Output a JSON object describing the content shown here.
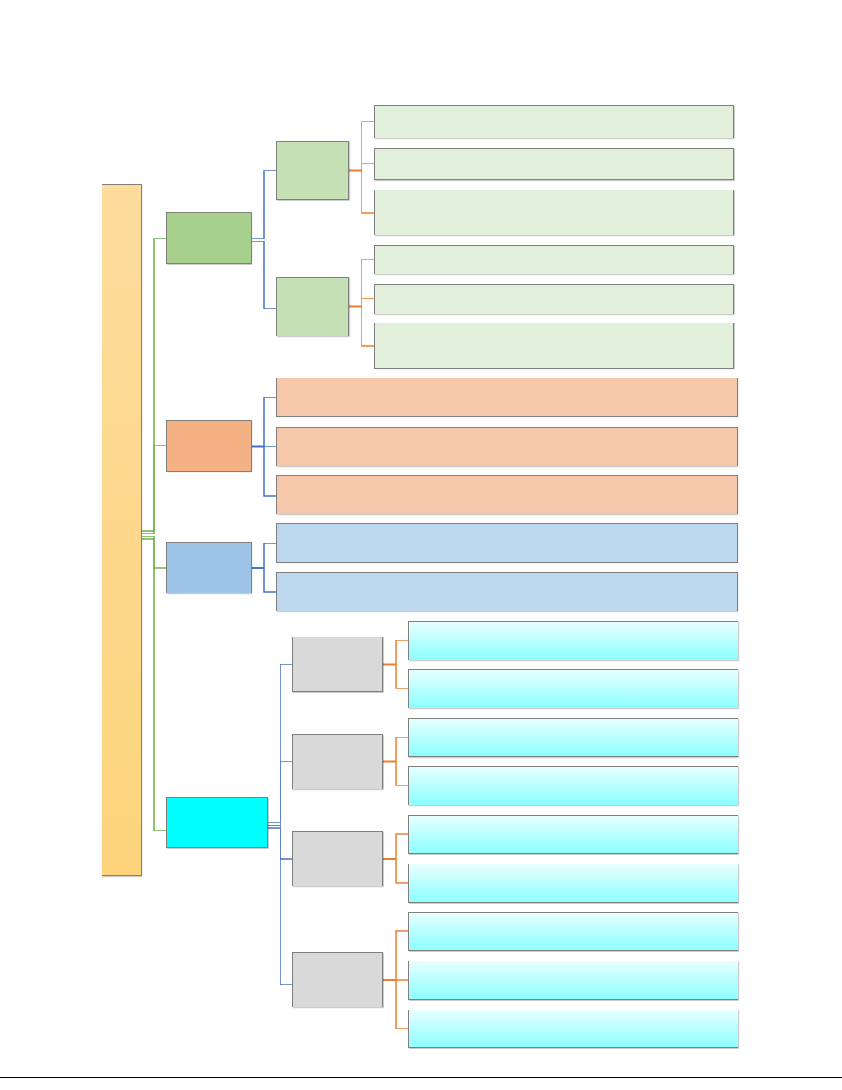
{
  "colors": {
    "root": "#fdd87f",
    "green_category": "#a8d08d",
    "orange_category": "#f4b183",
    "blue_category": "#9dc3e6",
    "cyan_category": "#00ffff",
    "green_sub": "#c5e0b4",
    "gray_sub": "#d9d9d9",
    "green_leaf": "#e2efda",
    "orange_leaf": "#f6c8ab",
    "blue_leaf": "#bdd7ee",
    "cyan_leaf": "#8cffff",
    "connector_green": "#70ad47",
    "connector_blue": "#4472c4",
    "connector_orange": "#ed7d31"
  },
  "tree": {
    "root": {
      "label": ""
    },
    "categories": [
      {
        "label": "",
        "subgroups": [
          {
            "label": "",
            "leaves": [
              {
                "label": ""
              },
              {
                "label": ""
              },
              {
                "label": ""
              }
            ]
          },
          {
            "label": "",
            "leaves": [
              {
                "label": ""
              },
              {
                "label": ""
              },
              {
                "label": ""
              }
            ]
          }
        ]
      },
      {
        "label": "",
        "leaves": [
          {
            "label": ""
          },
          {
            "label": ""
          },
          {
            "label": ""
          }
        ]
      },
      {
        "label": "",
        "leaves": [
          {
            "label": ""
          },
          {
            "label": ""
          }
        ]
      },
      {
        "label": "",
        "subgroups": [
          {
            "label": "",
            "leaves": [
              {
                "label": ""
              },
              {
                "label": ""
              }
            ]
          },
          {
            "label": "",
            "leaves": [
              {
                "label": ""
              },
              {
                "label": ""
              }
            ]
          },
          {
            "label": "",
            "leaves": [
              {
                "label": ""
              },
              {
                "label": ""
              }
            ]
          },
          {
            "label": "",
            "leaves": [
              {
                "label": ""
              },
              {
                "label": ""
              },
              {
                "label": ""
              }
            ]
          }
        ]
      }
    ]
  }
}
